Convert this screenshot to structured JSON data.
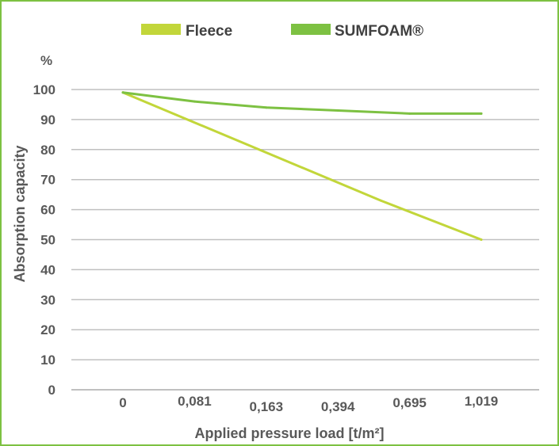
{
  "colors": {
    "frame": "#7dc142",
    "grid": "#c0c0c0",
    "text": "#595959"
  },
  "chart_data": {
    "type": "line",
    "title": "",
    "xlabel": "Applied pressure load [t/m²]",
    "ylabel": "Absorption capacity",
    "y_unit": "%",
    "categories": [
      "0",
      "0,081",
      "0,163",
      "0,394",
      "0,695",
      "1,019"
    ],
    "ylim": [
      0,
      100
    ],
    "yticks": [
      0,
      10,
      20,
      30,
      40,
      50,
      60,
      70,
      80,
      90,
      100
    ],
    "grid": true,
    "legend_position": "top",
    "series": [
      {
        "name": "Fleece",
        "color": "#c2d63a",
        "x": [
          0,
          3.6,
          5
        ],
        "y": [
          99,
          63,
          50
        ]
      },
      {
        "name": "SUMFOAM®",
        "color": "#7dc142",
        "x": [
          0,
          1,
          2,
          3,
          4,
          5
        ],
        "y": [
          99,
          96,
          94,
          93,
          92,
          92
        ]
      }
    ]
  }
}
